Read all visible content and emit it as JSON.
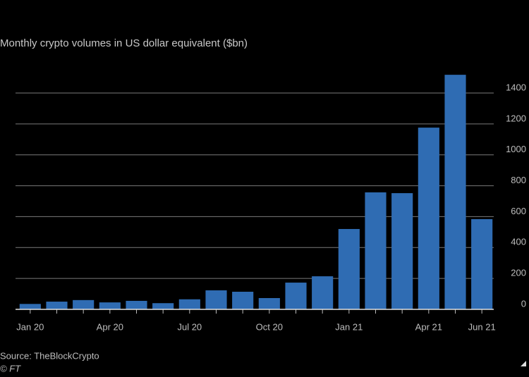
{
  "chart_data": {
    "type": "bar",
    "title": "Monthly crypto volumes in US dollar equivalent ($bn)",
    "source": "Source: TheBlockCrypto",
    "credit": "© FT",
    "categories": [
      "Jan 20",
      null,
      null,
      "Apr 20",
      null,
      null,
      "Jul 20",
      null,
      null,
      "Oct 20",
      null,
      null,
      "Jan 21",
      null,
      null,
      "Apr 21",
      null,
      "Jun 21"
    ],
    "values": [
      35,
      50,
      60,
      45,
      55,
      40,
      65,
      123,
      114,
      73,
      173,
      214,
      520,
      757,
      752,
      1176,
      1518,
      584
    ],
    "color": "#2f6cb3",
    "ylim": [
      0,
      1550
    ],
    "yticks": [
      0,
      200,
      400,
      600,
      800,
      1000,
      1200,
      1400
    ],
    "grid": true
  }
}
